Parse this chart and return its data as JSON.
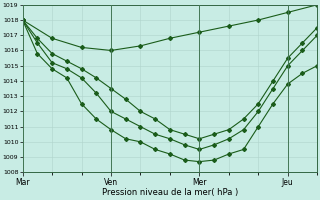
{
  "xlabel": "Pression niveau de la mer( hPa )",
  "ylim": [
    1008,
    1019
  ],
  "yticks": [
    1008,
    1009,
    1010,
    1011,
    1012,
    1013,
    1014,
    1015,
    1016,
    1017,
    1018,
    1019
  ],
  "xtick_labels": [
    "Mar",
    "Ven",
    "Mer",
    "Jeu"
  ],
  "xtick_positions": [
    0,
    3,
    6,
    9
  ],
  "xlim": [
    0,
    10
  ],
  "background_color": "#c8ece4",
  "grid_color": "#b0d4cc",
  "line_color": "#1a5c1a",
  "series_x": [
    [
      0,
      1,
      2,
      3,
      4,
      5,
      6,
      7,
      8,
      9,
      10
    ],
    [
      0,
      0.5,
      1,
      1.5,
      2,
      2.5,
      3,
      3.5,
      4,
      4.5,
      5,
      5.5,
      6,
      6.5,
      7,
      7.5,
      8,
      8.5,
      9,
      9.5,
      10
    ],
    [
      0,
      0.5,
      1,
      1.5,
      2,
      2.5,
      3,
      3.5,
      4,
      4.5,
      5,
      5.5,
      6,
      6.5,
      7,
      7.5,
      8,
      8.5,
      9,
      9.5,
      10
    ],
    [
      0,
      0.5,
      1,
      1.5,
      2,
      2.5,
      3,
      3.5,
      4,
      4.5,
      5,
      5.5,
      6,
      6.5,
      7,
      7.5,
      8,
      8.5,
      9,
      9.5,
      10
    ]
  ],
  "series_y": [
    [
      1018.0,
      1016.8,
      1016.2,
      1016.0,
      1016.3,
      1016.8,
      1017.2,
      1017.6,
      1018.0,
      1018.5,
      1019.0
    ],
    [
      1018.0,
      1016.8,
      1015.8,
      1015.3,
      1014.8,
      1014.2,
      1013.5,
      1012.8,
      1012.0,
      1011.5,
      1010.8,
      1010.5,
      1010.2,
      1010.5,
      1010.8,
      1011.5,
      1012.5,
      1014.0,
      1015.5,
      1016.5,
      1017.5
    ],
    [
      1018.0,
      1016.5,
      1015.2,
      1014.8,
      1014.2,
      1013.2,
      1012.0,
      1011.5,
      1011.0,
      1010.5,
      1010.2,
      1009.8,
      1009.5,
      1009.8,
      1010.2,
      1010.8,
      1012.0,
      1013.5,
      1015.0,
      1016.0,
      1017.0
    ],
    [
      1018.0,
      1015.8,
      1014.8,
      1014.2,
      1012.5,
      1011.5,
      1010.8,
      1010.2,
      1010.0,
      1009.5,
      1009.2,
      1008.8,
      1008.7,
      1008.8,
      1009.2,
      1009.5,
      1011.0,
      1012.5,
      1013.8,
      1014.5,
      1015.0
    ]
  ],
  "marker_x": [
    [
      0,
      1,
      2,
      3,
      4,
      5,
      6,
      7,
      8,
      9,
      10
    ],
    [
      0,
      1,
      2,
      3,
      4,
      5,
      6,
      7,
      8,
      9,
      10
    ],
    [
      0,
      1,
      2,
      3,
      4,
      5,
      6,
      7,
      8,
      9,
      10
    ],
    [
      0,
      1,
      2,
      3,
      4,
      5,
      6,
      7,
      8,
      9,
      10
    ]
  ]
}
